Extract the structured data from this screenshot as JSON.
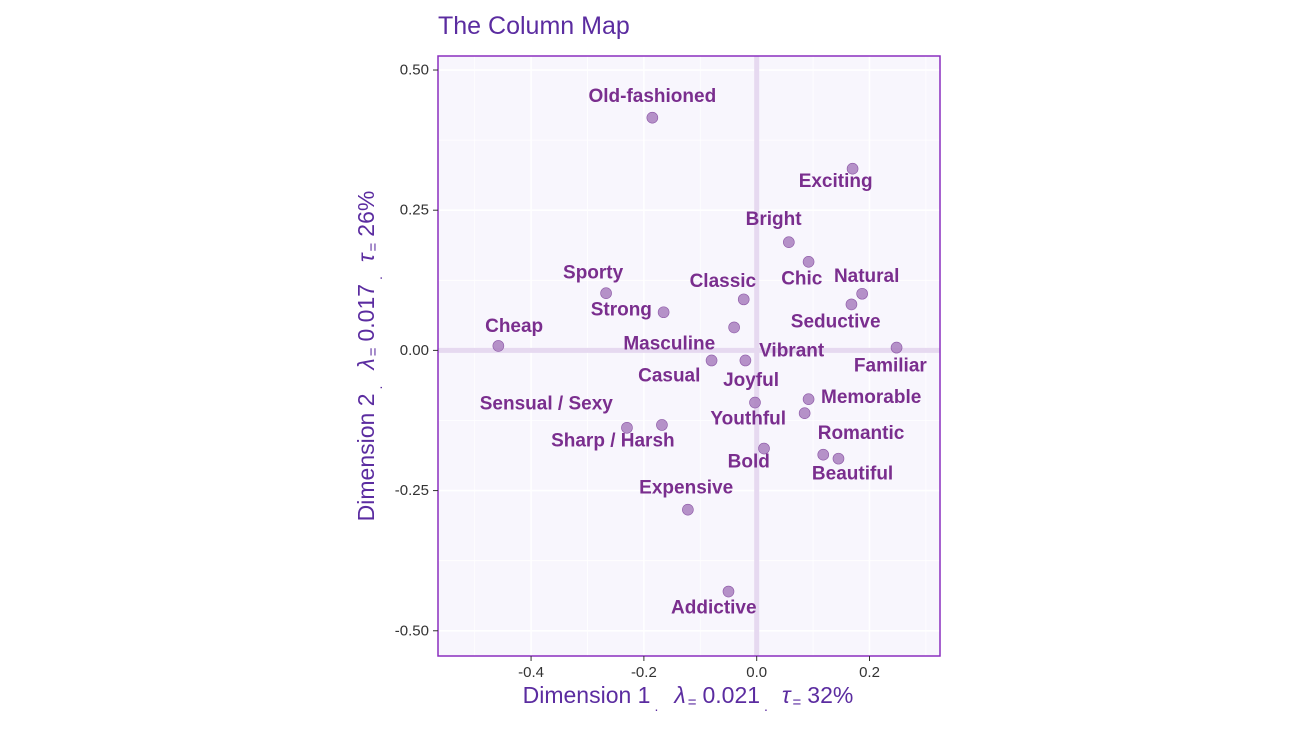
{
  "title": "The Column Map",
  "chart_data": {
    "type": "scatter",
    "title": "The Column Map",
    "xlabel": {
      "dim": "Dimension 1",
      "lambda": "0.021",
      "tau": "32%"
    },
    "ylabel": {
      "dim": "Dimension 2",
      "lambda": "0.017",
      "tau": "26%"
    },
    "xlim": [
      -0.565,
      0.325
    ],
    "ylim": [
      -0.545,
      0.525
    ],
    "xticks": [
      -0.4,
      -0.2,
      0.0,
      0.2
    ],
    "xtick_labels": [
      "-0.4",
      "-0.2",
      "0.0",
      "0.2"
    ],
    "yticks": [
      0.5,
      0.25,
      0.0,
      -0.25,
      -0.5
    ],
    "ytick_labels": [
      "0.50",
      "0.25",
      "0.00",
      "-0.25",
      "-0.50"
    ],
    "grid": true,
    "colors": {
      "title": "#5b2ca0",
      "point": "#a97fbe",
      "point_stroke": "#8e5aa8",
      "label": "#7a2e8e",
      "panel_bg": "#f8f6fd",
      "panel_border": "#8a2fbf",
      "origin_line": "#e6d9f0"
    },
    "points": [
      {
        "label": "Old-fashioned",
        "x": -0.185,
        "y": 0.415,
        "ldx": -0.185,
        "ldy": 0.453
      },
      {
        "label": "Exciting",
        "x": 0.17,
        "y": 0.324,
        "ldx": 0.14,
        "ldy": 0.301
      },
      {
        "label": "Bright",
        "x": 0.057,
        "y": 0.193,
        "ldx": 0.03,
        "ldy": 0.233
      },
      {
        "label": "Chic",
        "x": 0.092,
        "y": 0.158,
        "ldx": 0.08,
        "ldy": 0.127
      },
      {
        "label": "Natural",
        "x": 0.187,
        "y": 0.101,
        "ldx": 0.195,
        "ldy": 0.132
      },
      {
        "label": "Classic",
        "x": -0.023,
        "y": 0.091,
        "ldx": -0.06,
        "ldy": 0.123
      },
      {
        "label": "Sporty",
        "x": -0.267,
        "y": 0.102,
        "ldx": -0.29,
        "ldy": 0.138
      },
      {
        "label": "Strong",
        "x": -0.165,
        "y": 0.068,
        "ldx": -0.24,
        "ldy": 0.072
      },
      {
        "label": "Seductive",
        "x": 0.168,
        "y": 0.082,
        "ldx": 0.14,
        "ldy": 0.051
      },
      {
        "label": "Cheap",
        "x": -0.458,
        "y": 0.008,
        "ldx": -0.43,
        "ldy": 0.043
      },
      {
        "label": "Masculine",
        "x": -0.04,
        "y": 0.041,
        "ldx": -0.155,
        "ldy": 0.011
      },
      {
        "label": "Vibrant",
        "x": -0.02,
        "y": -0.018,
        "ldx": 0.062,
        "ldy": -0.001
      },
      {
        "label": "Familiar",
        "x": 0.248,
        "y": 0.005,
        "ldx": 0.237,
        "ldy": -0.028
      },
      {
        "label": "Casual",
        "x": -0.08,
        "y": -0.018,
        "ldx": -0.155,
        "ldy": -0.046
      },
      {
        "label": "Joyful",
        "x": -0.003,
        "y": -0.093,
        "ldx": -0.01,
        "ldy": -0.054
      },
      {
        "label": "Memorable",
        "x": 0.092,
        "y": -0.087,
        "ldx": 0.203,
        "ldy": -0.084
      },
      {
        "label": "Sensual / Sexy",
        "x": -0.23,
        "y": -0.138,
        "ldx": -0.373,
        "ldy": -0.096
      },
      {
        "label": "Youthful",
        "x": 0.085,
        "y": -0.112,
        "ldx": -0.015,
        "ldy": -0.122
      },
      {
        "label": "Sharp / Harsh",
        "x": -0.168,
        "y": -0.133,
        "ldx": -0.255,
        "ldy": -0.162
      },
      {
        "label": "Romantic",
        "x": 0.118,
        "y": -0.186,
        "ldx": 0.185,
        "ldy": -0.148
      },
      {
        "label": "Bold",
        "x": 0.013,
        "y": -0.175,
        "ldx": -0.014,
        "ldy": -0.199
      },
      {
        "label": "Beautiful",
        "x": 0.145,
        "y": -0.193,
        "ldx": 0.17,
        "ldy": -0.22
      },
      {
        "label": "Expensive",
        "x": -0.122,
        "y": -0.284,
        "ldx": -0.125,
        "ldy": -0.245
      },
      {
        "label": "Addictive",
        "x": -0.05,
        "y": -0.43,
        "ldx": -0.076,
        "ldy": -0.459
      }
    ]
  }
}
